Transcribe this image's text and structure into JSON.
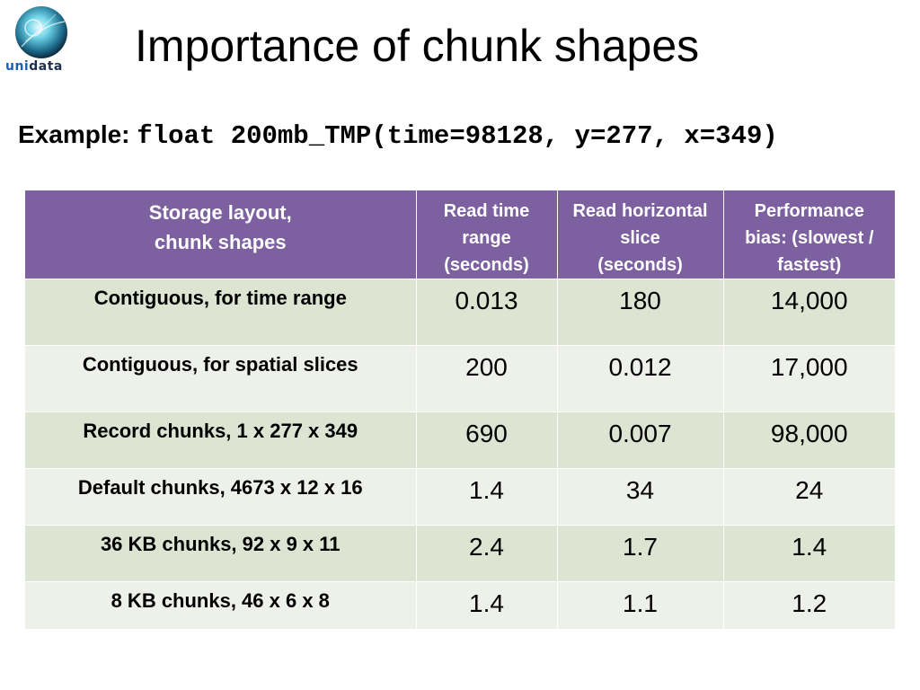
{
  "logo": {
    "text_uni": "uni",
    "text_data": "data"
  },
  "title": "Importance of chunk shapes",
  "example": {
    "label": "Example:",
    "code": "float 200mb_TMP(time=98128, y=277, x=349)"
  },
  "table": {
    "headers": {
      "col1_line1": "Storage layout,",
      "col1_line2": "chunk shapes",
      "col2_line1": "Read time",
      "col2_line2": "range",
      "col2_line3": "(seconds)",
      "col3_line1": "Read horizontal",
      "col3_line2": "slice",
      "col3_line3": "(seconds)",
      "col4_line1": "Performance",
      "col4_line2": "bias: (slowest /",
      "col4_line3": "fastest)"
    },
    "rows": [
      {
        "layout": "Contiguous, for time range",
        "read_time": "0.013",
        "read_slice": "180",
        "bias": "14,000"
      },
      {
        "layout": "Contiguous, for spatial slices",
        "read_time": "200",
        "read_slice": "0.012",
        "bias": "17,000"
      },
      {
        "layout": "Record chunks, 1 x 277 x 349",
        "read_time": "690",
        "read_slice": "0.007",
        "bias": "98,000"
      },
      {
        "layout": "Default chunks, 4673 x 12 x 16",
        "read_time": "1.4",
        "read_slice": "34",
        "bias": "24"
      },
      {
        "layout": "36 KB chunks, 92 x 9 x 11",
        "read_time": "2.4",
        "read_slice": "1.7",
        "bias": "1.4"
      },
      {
        "layout": "8 KB chunks, 46 x 6 x 8",
        "read_time": "1.4",
        "read_slice": "1.1",
        "bias": "1.2"
      }
    ]
  }
}
